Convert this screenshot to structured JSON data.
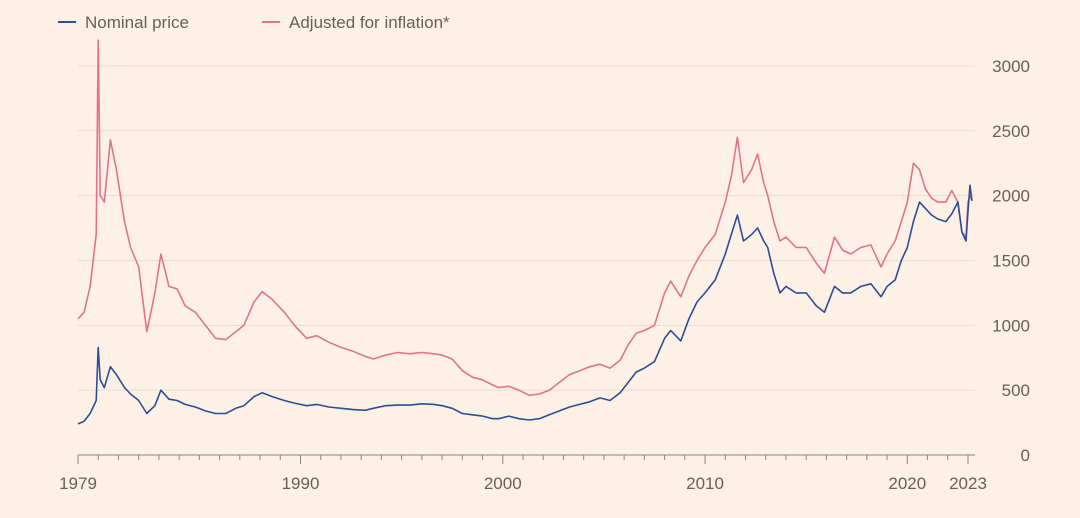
{
  "colors": {
    "nominal": "#2a4f98",
    "adjusted": "#e3728f",
    "background": "#fdf1e6"
  },
  "chart_data": {
    "type": "line",
    "title": "",
    "xlabel": "",
    "ylabel": "",
    "xlim": [
      1979,
      2023
    ],
    "ylim": [
      0,
      3200
    ],
    "x_ticks": [
      1979,
      1990,
      2000,
      2010,
      2020,
      2023
    ],
    "x_tick_labels": [
      "1979",
      "1990",
      "2000",
      "2010",
      "2020",
      "2023"
    ],
    "y_ticks": [
      0,
      500,
      1000,
      1500,
      2000,
      2500,
      3000
    ],
    "y_tick_labels": [
      "0",
      "500",
      "1000",
      "1500",
      "2000",
      "2500",
      "3000"
    ],
    "grid": "horizontal",
    "legend_position": "top-left",
    "series": [
      {
        "name": "Nominal price",
        "x": [
          1979.0,
          1979.3,
          1979.6,
          1979.9,
          1980.0,
          1980.1,
          1980.3,
          1980.6,
          1980.9,
          1981.3,
          1981.6,
          1982.0,
          1982.4,
          1982.8,
          1983.1,
          1983.5,
          1983.9,
          1984.3,
          1984.8,
          1985.3,
          1985.8,
          1986.3,
          1986.8,
          1987.2,
          1987.7,
          1988.1,
          1988.6,
          1989.2,
          1989.7,
          1990.3,
          1990.8,
          1991.4,
          1992.0,
          1992.6,
          1993.2,
          1993.6,
          1994.2,
          1994.8,
          1995.4,
          1996.0,
          1996.6,
          1997.0,
          1997.5,
          1998.0,
          1998.5,
          1999.0,
          1999.5,
          1999.8,
          2000.3,
          2000.8,
          2001.3,
          2001.8,
          2002.3,
          2002.8,
          2003.3,
          2003.8,
          2004.3,
          2004.8,
          2005.3,
          2005.8,
          2006.2,
          2006.6,
          2007.0,
          2007.5,
          2008.0,
          2008.3,
          2008.8,
          2009.2,
          2009.6,
          2010.0,
          2010.5,
          2011.0,
          2011.3,
          2011.6,
          2011.9,
          2012.3,
          2012.6,
          2012.9,
          2013.1,
          2013.4,
          2013.7,
          2014.0,
          2014.5,
          2015.0,
          2015.5,
          2015.9,
          2016.4,
          2016.8,
          2017.2,
          2017.7,
          2018.2,
          2018.7,
          2019.0,
          2019.4,
          2019.7,
          2020.0,
          2020.3,
          2020.6,
          2020.9,
          2021.2,
          2021.5,
          2021.9,
          2022.2,
          2022.5,
          2022.7,
          2022.9,
          2023.0,
          2023.1,
          2023.2
        ],
        "values": [
          240,
          260,
          320,
          420,
          830,
          580,
          520,
          680,
          620,
          520,
          470,
          420,
          320,
          380,
          500,
          430,
          420,
          390,
          370,
          340,
          320,
          320,
          360,
          380,
          450,
          480,
          450,
          420,
          400,
          380,
          390,
          370,
          360,
          350,
          345,
          360,
          380,
          385,
          385,
          395,
          390,
          380,
          360,
          320,
          310,
          300,
          280,
          280,
          300,
          280,
          270,
          280,
          310,
          340,
          370,
          390,
          410,
          440,
          420,
          480,
          560,
          640,
          670,
          720,
          900,
          960,
          880,
          1050,
          1180,
          1250,
          1350,
          1550,
          1700,
          1850,
          1650,
          1700,
          1750,
          1650,
          1600,
          1400,
          1250,
          1300,
          1250,
          1250,
          1150,
          1100,
          1300,
          1250,
          1250,
          1300,
          1320,
          1220,
          1300,
          1350,
          1500,
          1600,
          1800,
          1950,
          1900,
          1850,
          1820,
          1800,
          1860,
          1950,
          1720,
          1650,
          1880,
          2080,
          1960
        ]
      },
      {
        "name": "Adjusted for inflation*",
        "x": [
          1979.0,
          1979.3,
          1979.6,
          1979.9,
          1980.0,
          1980.1,
          1980.3,
          1980.6,
          1980.9,
          1981.3,
          1981.6,
          1982.0,
          1982.4,
          1982.8,
          1983.1,
          1983.5,
          1983.9,
          1984.3,
          1984.8,
          1985.3,
          1985.8,
          1986.3,
          1986.8,
          1987.2,
          1987.7,
          1988.1,
          1988.6,
          1989.2,
          1989.7,
          1990.3,
          1990.8,
          1991.4,
          1992.0,
          1992.6,
          1993.2,
          1993.6,
          1994.2,
          1994.8,
          1995.4,
          1996.0,
          1996.6,
          1997.0,
          1997.5,
          1998.0,
          1998.5,
          1999.0,
          1999.5,
          1999.8,
          2000.3,
          2000.8,
          2001.3,
          2001.8,
          2002.3,
          2002.8,
          2003.3,
          2003.8,
          2004.3,
          2004.8,
          2005.3,
          2005.8,
          2006.2,
          2006.6,
          2007.0,
          2007.5,
          2008.0,
          2008.3,
          2008.8,
          2009.2,
          2009.6,
          2010.0,
          2010.5,
          2011.0,
          2011.3,
          2011.6,
          2011.9,
          2012.3,
          2012.6,
          2012.9,
          2013.1,
          2013.4,
          2013.7,
          2014.0,
          2014.5,
          2015.0,
          2015.5,
          2015.9,
          2016.4,
          2016.8,
          2017.2,
          2017.7,
          2018.2,
          2018.7,
          2019.0,
          2019.4,
          2019.7,
          2020.0,
          2020.3,
          2020.6,
          2020.9,
          2021.2,
          2021.5,
          2021.9,
          2022.2,
          2022.5,
          2022.7,
          2022.9,
          2023.0,
          2023.1,
          2023.2
        ],
        "values": [
          1050,
          1100,
          1300,
          1700,
          3200,
          2000,
          1950,
          2430,
          2200,
          1800,
          1600,
          1450,
          950,
          1250,
          1550,
          1300,
          1280,
          1150,
          1100,
          1000,
          900,
          890,
          950,
          1000,
          1180,
          1260,
          1200,
          1100,
          1000,
          900,
          920,
          870,
          830,
          800,
          760,
          740,
          770,
          790,
          780,
          790,
          780,
          770,
          740,
          650,
          600,
          580,
          540,
          520,
          530,
          500,
          460,
          470,
          500,
          560,
          620,
          650,
          680,
          700,
          670,
          730,
          850,
          940,
          960,
          1000,
          1250,
          1340,
          1220,
          1380,
          1500,
          1600,
          1700,
          1950,
          2150,
          2450,
          2100,
          2200,
          2320,
          2100,
          2000,
          1800,
          1650,
          1680,
          1600,
          1600,
          1480,
          1400,
          1680,
          1580,
          1550,
          1600,
          1620,
          1450,
          1550,
          1650,
          1800,
          1950,
          2250,
          2200,
          2050,
          1980,
          1950,
          1950,
          2040,
          1950,
          1720,
          1680,
          1950,
          2000,
          1960
        ]
      }
    ]
  }
}
